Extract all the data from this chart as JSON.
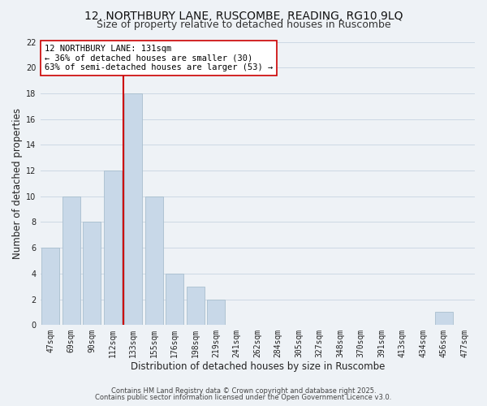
{
  "title": "12, NORTHBURY LANE, RUSCOMBE, READING, RG10 9LQ",
  "subtitle": "Size of property relative to detached houses in Ruscombe",
  "xlabel": "Distribution of detached houses by size in Ruscombe",
  "ylabel": "Number of detached properties",
  "bar_labels": [
    "47sqm",
    "69sqm",
    "90sqm",
    "112sqm",
    "133sqm",
    "155sqm",
    "176sqm",
    "198sqm",
    "219sqm",
    "241sqm",
    "262sqm",
    "284sqm",
    "305sqm",
    "327sqm",
    "348sqm",
    "370sqm",
    "391sqm",
    "413sqm",
    "434sqm",
    "456sqm",
    "477sqm"
  ],
  "bar_values": [
    6,
    10,
    8,
    12,
    18,
    10,
    4,
    3,
    2,
    0,
    0,
    0,
    0,
    0,
    0,
    0,
    0,
    0,
    0,
    1,
    0
  ],
  "bar_color": "#c8d8e8",
  "bar_edge_color": "#a8bece",
  "vline_color": "#cc0000",
  "vline_bar_index": 4,
  "annotation_title": "12 NORTHBURY LANE: 131sqm",
  "annotation_line2": "← 36% of detached houses are smaller (30)",
  "annotation_line3": "63% of semi-detached houses are larger (53) →",
  "annotation_box_color": "#ffffff",
  "annotation_box_edge": "#cc0000",
  "ylim": [
    0,
    22
  ],
  "yticks": [
    0,
    2,
    4,
    6,
    8,
    10,
    12,
    14,
    16,
    18,
    20,
    22
  ],
  "grid_color": "#ccd8e4",
  "background_color": "#eef2f6",
  "footer_line1": "Contains HM Land Registry data © Crown copyright and database right 2025.",
  "footer_line2": "Contains public sector information licensed under the Open Government Licence v3.0.",
  "title_fontsize": 10,
  "subtitle_fontsize": 9,
  "axis_label_fontsize": 8.5,
  "tick_fontsize": 7,
  "annotation_fontsize": 7.5,
  "footer_fontsize": 6
}
